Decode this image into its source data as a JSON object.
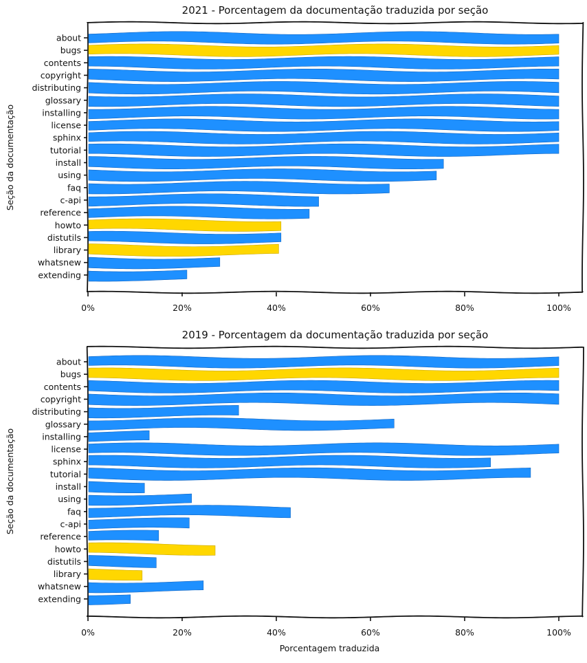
{
  "chart_data": [
    {
      "type": "bar",
      "orientation": "horizontal",
      "title": "2021 - Porcentagem da documentação traduzida por seção",
      "ylabel": "Seção da documentação",
      "xlabel": "",
      "xlim": [
        0,
        105
      ],
      "xticks": [
        "0%",
        "20%",
        "40%",
        "60%",
        "80%",
        "100%"
      ],
      "categories": [
        "about",
        "bugs",
        "contents",
        "copyright",
        "distributing",
        "glossary",
        "installing",
        "license",
        "sphinx",
        "tutorial",
        "install",
        "using",
        "faq",
        "c-api",
        "reference",
        "howto",
        "distutils",
        "library",
        "whatsnew",
        "extending"
      ],
      "values": [
        100,
        100,
        100,
        100,
        100,
        100,
        100,
        100,
        100,
        100,
        75.5,
        74,
        64,
        49,
        47,
        41,
        41,
        40.5,
        28,
        21
      ],
      "highlight": [
        "bugs",
        "howto",
        "library"
      ],
      "colors": {
        "default": "#1e90ff",
        "highlight": "#ffd700"
      }
    },
    {
      "type": "bar",
      "orientation": "horizontal",
      "title": "2019 - Porcentagem da documentação traduzida por seção",
      "ylabel": "Seção da documentação",
      "xlabel": "Porcentagem traduzida",
      "xlim": [
        0,
        105
      ],
      "xticks": [
        "0%",
        "20%",
        "40%",
        "60%",
        "80%",
        "100%"
      ],
      "categories": [
        "about",
        "bugs",
        "contents",
        "copyright",
        "distributing",
        "glossary",
        "installing",
        "license",
        "sphinx",
        "tutorial",
        "install",
        "using",
        "faq",
        "c-api",
        "reference",
        "howto",
        "distutils",
        "library",
        "whatsnew",
        "extending"
      ],
      "values": [
        100,
        100,
        100,
        100,
        32,
        65,
        13,
        100,
        85.5,
        94,
        12,
        22,
        43,
        21.5,
        15,
        27,
        14.5,
        11.5,
        24.5,
        9
      ],
      "highlight": [
        "bugs",
        "howto",
        "library"
      ],
      "colors": {
        "default": "#1e90ff",
        "highlight": "#ffd700"
      }
    }
  ]
}
